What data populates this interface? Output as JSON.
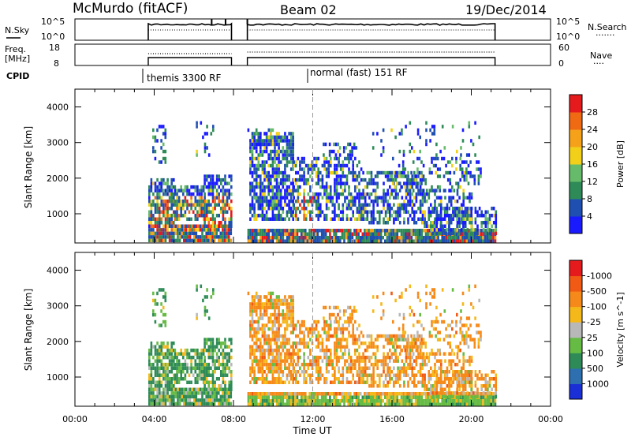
{
  "header": {
    "station": "McMurdo (fitACF)",
    "beam": "Beam 02",
    "date": "19/Dec/2014"
  },
  "panel_labels": {
    "nsky": "N.Sky",
    "nsearch": "N.Search",
    "nsearch_line": "·······",
    "freq1": "Freq.",
    "freq2": "[MHz]",
    "nave": "Nave",
    "nave_line": "····",
    "cpid": "CPID",
    "cpid_segments": [
      "themis 3300 RF",
      "normal (fast) 151 RF"
    ]
  },
  "noise_axis": {
    "left_ticks": [
      "10^5",
      "10^0"
    ],
    "right_ticks": [
      "10^5",
      "10^0"
    ]
  },
  "freq_axis": {
    "left_ticks": [
      "18",
      "8"
    ],
    "right_ticks": [
      "60",
      "0"
    ]
  },
  "chart_data": [
    {
      "type": "heatmap",
      "title": "Power",
      "ylabel": "Slant Range [km]",
      "ylim": [
        180,
        4500
      ],
      "xlim": [
        0,
        24
      ],
      "yticks": [
        1000,
        2000,
        3000,
        4000
      ],
      "colorbar": {
        "label": "Power [dB]",
        "ticks": [
          "4",
          "8",
          "12",
          "16",
          "20",
          "24",
          "28"
        ],
        "colors": [
          "#1a1aff",
          "#1f4fb0",
          "#2e8b57",
          "#66bb6a",
          "#f2d01a",
          "#f5a21a",
          "#f06a14",
          "#e41a1c"
        ]
      },
      "data_intervals_UT": [
        [
          3.7,
          7.9
        ],
        [
          8.7,
          21.2
        ]
      ]
    },
    {
      "type": "heatmap",
      "title": "Velocity",
      "ylabel": "Slant Range [km]",
      "ylim": [
        180,
        4500
      ],
      "xlim": [
        0,
        24
      ],
      "yticks": [
        1000,
        2000,
        3000,
        4000
      ],
      "colorbar": {
        "label": "Velocity [m s^-1]",
        "ticks": [
          "1000",
          "500",
          "100",
          "25",
          "-25",
          "-100",
          "-500",
          "-1000"
        ],
        "colors": [
          "#1a2fd6",
          "#2e6fb0",
          "#2e8b57",
          "#66bb44",
          "#b8b8b8",
          "#f5b81a",
          "#f58a1a",
          "#f05a14",
          "#e41a1c"
        ]
      },
      "data_intervals_UT": [
        [
          3.7,
          7.9
        ],
        [
          8.7,
          21.2
        ]
      ]
    }
  ],
  "x_axis": {
    "ticks": [
      "00:00",
      "04:00",
      "08:00",
      "12:00",
      "16:00",
      "20:00",
      "00:00"
    ],
    "label": "Time UT"
  }
}
